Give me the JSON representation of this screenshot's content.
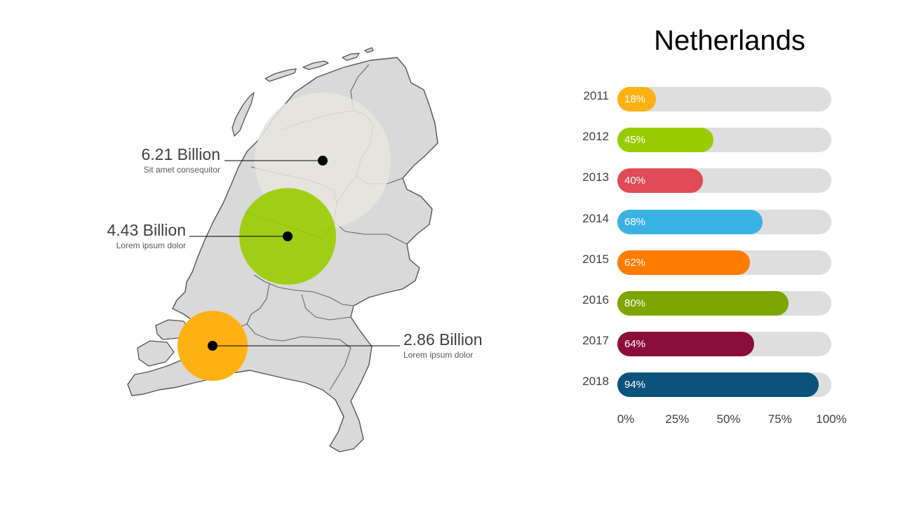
{
  "colors": {
    "map_fill": "#d9d9d9",
    "map_stroke": "#555555",
    "track": "#dedede"
  },
  "map": {
    "bubbles": [
      {
        "value": "6.21 Billion",
        "desc": "Sit amet consequitor",
        "color": "#e7e6dd"
      },
      {
        "value": "4.43 Billion",
        "desc": "Lorem ipsum dolor",
        "color": "#99cc00"
      },
      {
        "value": "2.86 Billion",
        "desc": "Lorem ipsum dolor",
        "color": "#ffb114"
      }
    ]
  },
  "chart_data": {
    "type": "bar",
    "orientation": "horizontal",
    "title": "Netherlands",
    "categories": [
      "2011",
      "2012",
      "2013",
      "2014",
      "2015",
      "2016",
      "2017",
      "2018"
    ],
    "values": [
      18,
      45,
      40,
      68,
      62,
      80,
      64,
      94
    ],
    "value_labels": [
      "18%",
      "45%",
      "40%",
      "68%",
      "62%",
      "80%",
      "64%",
      "94%"
    ],
    "colors": [
      "#ffb114",
      "#99cc00",
      "#e14a57",
      "#3ab1e3",
      "#ff7c00",
      "#7ea600",
      "#8b0d3a",
      "#0b527d"
    ],
    "xlim": [
      0,
      100
    ],
    "xticks": [
      "0%",
      "25%",
      "50%",
      "75%",
      "100%"
    ],
    "grid": false,
    "legend": "none"
  }
}
